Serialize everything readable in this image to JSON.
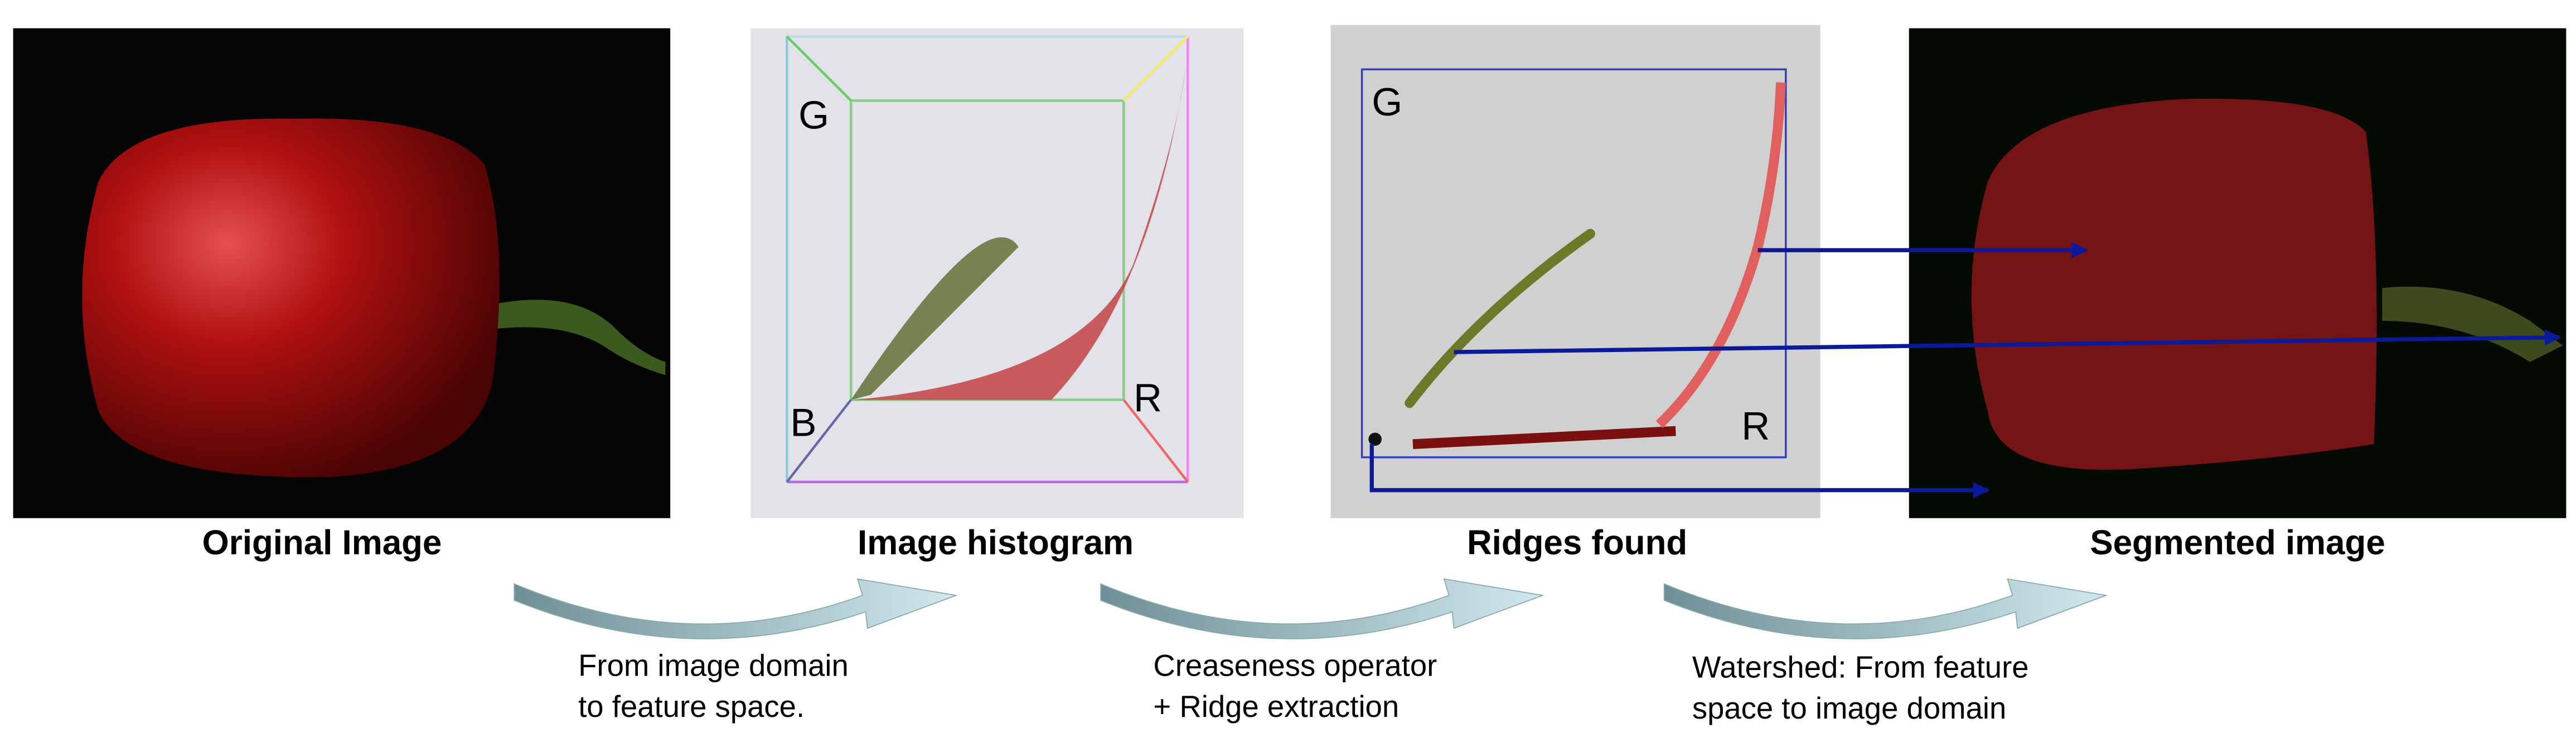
{
  "panels": [
    {
      "caption": "Original Image"
    },
    {
      "caption": "Image histogram",
      "axes": [
        "G",
        "B",
        "R"
      ]
    },
    {
      "caption": "Ridges found",
      "axes": [
        "G",
        "R"
      ]
    },
    {
      "caption": "Segmented image"
    }
  ],
  "steps": [
    {
      "lines": [
        "From image domain",
        "to feature space."
      ]
    },
    {
      "lines": [
        "Creaseness operator",
        "+ Ridge extraction"
      ]
    },
    {
      "lines": [
        "Watershed: From feature",
        "space to image domain"
      ]
    }
  ]
}
